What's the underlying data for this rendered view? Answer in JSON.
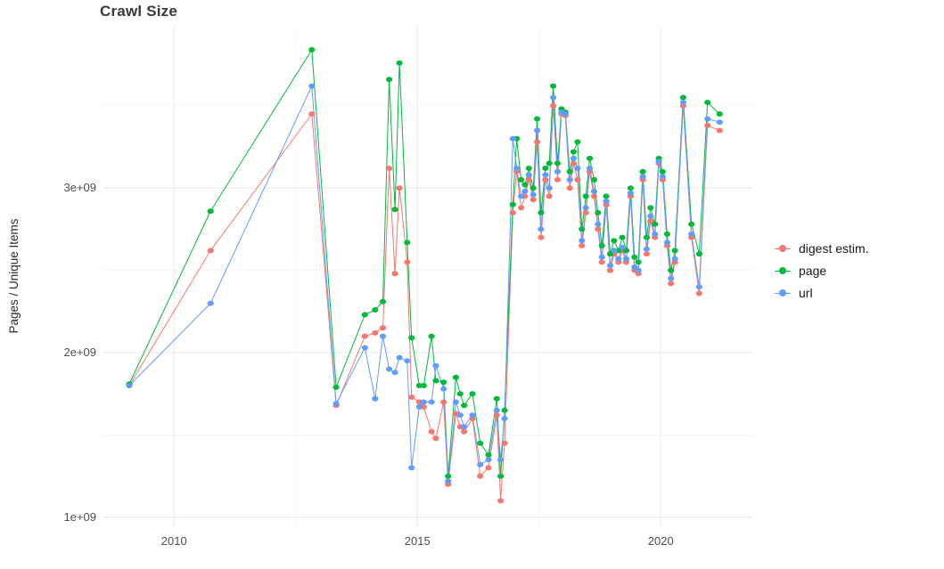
{
  "chart_data": {
    "type": "line",
    "title": "Crawl Size",
    "xlabel": "",
    "ylabel": "Pages / Unique Items",
    "y_unit": "1e+09 (values below are in billions)",
    "xlim": [
      2008.53,
      2021.9
    ],
    "ylim": [
      0.94,
      3.98
    ],
    "grid": true,
    "legend_position": "right",
    "xticks": [
      {
        "value": 2010,
        "label": "2010"
      },
      {
        "value": 2015,
        "label": "2015"
      },
      {
        "value": 2020,
        "label": "2020"
      }
    ],
    "yticks": [
      {
        "value": 1,
        "label": "1e+09"
      },
      {
        "value": 2,
        "label": "2e+09"
      },
      {
        "value": 3,
        "label": "3e+09"
      }
    ],
    "minor_xticks": [
      2012.5,
      2017.5
    ],
    "minor_yticks": [
      1.5,
      2.5,
      3.5
    ],
    "series": [
      {
        "name": "digest estim.",
        "color": "#F8766D",
        "points": [
          [
            2009.08,
            1.8
          ],
          [
            2010.75,
            2.62
          ],
          [
            2012.83,
            3.45
          ],
          [
            2013.33,
            1.68
          ],
          [
            2013.92,
            2.1
          ],
          [
            2014.13,
            2.12
          ],
          [
            2014.29,
            2.15
          ],
          [
            2014.42,
            3.12
          ],
          [
            2014.54,
            2.48
          ],
          [
            2014.63,
            3.0
          ],
          [
            2014.79,
            2.55
          ],
          [
            2014.88,
            1.73
          ],
          [
            2015.04,
            1.7
          ],
          [
            2015.13,
            1.67
          ],
          [
            2015.29,
            1.52
          ],
          [
            2015.38,
            1.48
          ],
          [
            2015.54,
            1.7
          ],
          [
            2015.63,
            1.2
          ],
          [
            2015.79,
            1.63
          ],
          [
            2015.88,
            1.55
          ],
          [
            2015.96,
            1.52
          ],
          [
            2016.13,
            1.6
          ],
          [
            2016.29,
            1.25
          ],
          [
            2016.46,
            1.3
          ],
          [
            2016.63,
            1.62
          ],
          [
            2016.71,
            1.1
          ],
          [
            2016.79,
            1.45
          ],
          [
            2016.96,
            2.85
          ],
          [
            2017.04,
            3.1
          ],
          [
            2017.13,
            2.88
          ],
          [
            2017.21,
            2.95
          ],
          [
            2017.29,
            3.05
          ],
          [
            2017.38,
            2.93
          ],
          [
            2017.46,
            3.28
          ],
          [
            2017.54,
            2.7
          ],
          [
            2017.63,
            3.05
          ],
          [
            2017.71,
            2.95
          ],
          [
            2017.79,
            3.5
          ],
          [
            2017.88,
            3.05
          ],
          [
            2017.96,
            3.45
          ],
          [
            2018.04,
            3.44
          ],
          [
            2018.13,
            3.0
          ],
          [
            2018.21,
            3.15
          ],
          [
            2018.29,
            3.05
          ],
          [
            2018.38,
            2.65
          ],
          [
            2018.46,
            2.85
          ],
          [
            2018.54,
            3.1
          ],
          [
            2018.63,
            2.95
          ],
          [
            2018.71,
            2.75
          ],
          [
            2018.79,
            2.55
          ],
          [
            2018.88,
            2.9
          ],
          [
            2018.96,
            2.5
          ],
          [
            2019.04,
            2.6
          ],
          [
            2019.13,
            2.55
          ],
          [
            2019.21,
            2.62
          ],
          [
            2019.29,
            2.55
          ],
          [
            2019.38,
            2.95
          ],
          [
            2019.46,
            2.5
          ],
          [
            2019.54,
            2.48
          ],
          [
            2019.63,
            3.05
          ],
          [
            2019.71,
            2.6
          ],
          [
            2019.79,
            2.8
          ],
          [
            2019.88,
            2.7
          ],
          [
            2019.96,
            3.15
          ],
          [
            2020.04,
            3.05
          ],
          [
            2020.13,
            2.65
          ],
          [
            2020.21,
            2.42
          ],
          [
            2020.29,
            2.55
          ],
          [
            2020.46,
            3.5
          ],
          [
            2020.63,
            2.7
          ],
          [
            2020.79,
            2.36
          ],
          [
            2020.96,
            3.38
          ],
          [
            2021.21,
            3.35
          ]
        ]
      },
      {
        "name": "page",
        "color": "#00BA38",
        "points": [
          [
            2009.08,
            1.81
          ],
          [
            2010.75,
            2.86
          ],
          [
            2012.83,
            3.84
          ],
          [
            2013.33,
            1.79
          ],
          [
            2013.92,
            2.23
          ],
          [
            2014.13,
            2.26
          ],
          [
            2014.29,
            2.31
          ],
          [
            2014.42,
            3.66
          ],
          [
            2014.54,
            2.87
          ],
          [
            2014.63,
            3.76
          ],
          [
            2014.79,
            2.67
          ],
          [
            2014.88,
            2.09
          ],
          [
            2015.04,
            1.8
          ],
          [
            2015.13,
            1.8
          ],
          [
            2015.29,
            2.1
          ],
          [
            2015.38,
            1.83
          ],
          [
            2015.54,
            1.82
          ],
          [
            2015.63,
            1.25
          ],
          [
            2015.79,
            1.85
          ],
          [
            2015.88,
            1.75
          ],
          [
            2015.96,
            1.68
          ],
          [
            2016.13,
            1.75
          ],
          [
            2016.29,
            1.45
          ],
          [
            2016.46,
            1.38
          ],
          [
            2016.63,
            1.72
          ],
          [
            2016.71,
            1.25
          ],
          [
            2016.79,
            1.65
          ],
          [
            2016.96,
            2.9
          ],
          [
            2017.04,
            3.3
          ],
          [
            2017.13,
            3.05
          ],
          [
            2017.21,
            3.02
          ],
          [
            2017.29,
            3.12
          ],
          [
            2017.38,
            3.0
          ],
          [
            2017.46,
            3.42
          ],
          [
            2017.54,
            2.85
          ],
          [
            2017.63,
            3.12
          ],
          [
            2017.71,
            3.15
          ],
          [
            2017.79,
            3.62
          ],
          [
            2017.88,
            3.15
          ],
          [
            2017.96,
            3.48
          ],
          [
            2018.04,
            3.46
          ],
          [
            2018.13,
            3.1
          ],
          [
            2018.21,
            3.22
          ],
          [
            2018.29,
            3.28
          ],
          [
            2018.38,
            2.75
          ],
          [
            2018.46,
            2.95
          ],
          [
            2018.54,
            3.18
          ],
          [
            2018.63,
            3.05
          ],
          [
            2018.71,
            2.85
          ],
          [
            2018.79,
            2.65
          ],
          [
            2018.88,
            2.95
          ],
          [
            2018.96,
            2.6
          ],
          [
            2019.04,
            2.68
          ],
          [
            2019.13,
            2.62
          ],
          [
            2019.21,
            2.7
          ],
          [
            2019.29,
            2.62
          ],
          [
            2019.38,
            3.0
          ],
          [
            2019.46,
            2.58
          ],
          [
            2019.54,
            2.55
          ],
          [
            2019.63,
            3.1
          ],
          [
            2019.71,
            2.7
          ],
          [
            2019.79,
            2.88
          ],
          [
            2019.88,
            2.78
          ],
          [
            2019.96,
            3.18
          ],
          [
            2020.04,
            3.1
          ],
          [
            2020.13,
            2.72
          ],
          [
            2020.21,
            2.5
          ],
          [
            2020.29,
            2.62
          ],
          [
            2020.46,
            3.55
          ],
          [
            2020.63,
            2.78
          ],
          [
            2020.79,
            2.6
          ],
          [
            2020.96,
            3.52
          ],
          [
            2021.21,
            3.45
          ]
        ]
      },
      {
        "name": "url",
        "color": "#619CFF",
        "points": [
          [
            2009.08,
            1.8
          ],
          [
            2010.75,
            2.3
          ],
          [
            2012.83,
            3.62
          ],
          [
            2013.33,
            1.69
          ],
          [
            2013.92,
            2.03
          ],
          [
            2014.13,
            1.72
          ],
          [
            2014.29,
            2.1
          ],
          [
            2014.42,
            1.9
          ],
          [
            2014.54,
            1.88
          ],
          [
            2014.63,
            1.97
          ],
          [
            2014.79,
            1.95
          ],
          [
            2014.88,
            1.3
          ],
          [
            2015.04,
            1.67
          ],
          [
            2015.13,
            1.7
          ],
          [
            2015.29,
            1.7
          ],
          [
            2015.38,
            1.92
          ],
          [
            2015.54,
            1.78
          ],
          [
            2015.63,
            1.22
          ],
          [
            2015.79,
            1.7
          ],
          [
            2015.88,
            1.62
          ],
          [
            2015.96,
            1.55
          ],
          [
            2016.13,
            1.62
          ],
          [
            2016.29,
            1.32
          ],
          [
            2016.46,
            1.35
          ],
          [
            2016.63,
            1.65
          ],
          [
            2016.71,
            1.35
          ],
          [
            2016.79,
            1.6
          ],
          [
            2016.96,
            3.3
          ],
          [
            2017.04,
            3.12
          ],
          [
            2017.13,
            2.95
          ],
          [
            2017.21,
            2.98
          ],
          [
            2017.29,
            3.08
          ],
          [
            2017.38,
            2.96
          ],
          [
            2017.46,
            3.35
          ],
          [
            2017.54,
            2.75
          ],
          [
            2017.63,
            3.08
          ],
          [
            2017.71,
            3.0
          ],
          [
            2017.79,
            3.55
          ],
          [
            2017.88,
            3.1
          ],
          [
            2017.96,
            3.46
          ],
          [
            2018.04,
            3.45
          ],
          [
            2018.13,
            3.05
          ],
          [
            2018.21,
            3.18
          ],
          [
            2018.29,
            3.12
          ],
          [
            2018.38,
            2.68
          ],
          [
            2018.46,
            2.88
          ],
          [
            2018.54,
            3.12
          ],
          [
            2018.63,
            2.98
          ],
          [
            2018.71,
            2.78
          ],
          [
            2018.79,
            2.58
          ],
          [
            2018.88,
            2.92
          ],
          [
            2018.96,
            2.53
          ],
          [
            2019.04,
            2.62
          ],
          [
            2019.13,
            2.57
          ],
          [
            2019.21,
            2.64
          ],
          [
            2019.29,
            2.57
          ],
          [
            2019.38,
            2.97
          ],
          [
            2019.46,
            2.52
          ],
          [
            2019.54,
            2.5
          ],
          [
            2019.63,
            3.07
          ],
          [
            2019.71,
            2.63
          ],
          [
            2019.79,
            2.83
          ],
          [
            2019.88,
            2.72
          ],
          [
            2019.96,
            3.16
          ],
          [
            2020.04,
            3.07
          ],
          [
            2020.13,
            2.67
          ],
          [
            2020.21,
            2.45
          ],
          [
            2020.29,
            2.57
          ],
          [
            2020.46,
            3.52
          ],
          [
            2020.63,
            2.72
          ],
          [
            2020.79,
            2.4
          ],
          [
            2020.96,
            3.42
          ],
          [
            2021.21,
            3.4
          ]
        ]
      }
    ],
    "style_colors": {
      "grid_major": "#e8e8e8",
      "grid_minor": "#f5f5f5",
      "axis_text": "#4d4d4d"
    }
  }
}
